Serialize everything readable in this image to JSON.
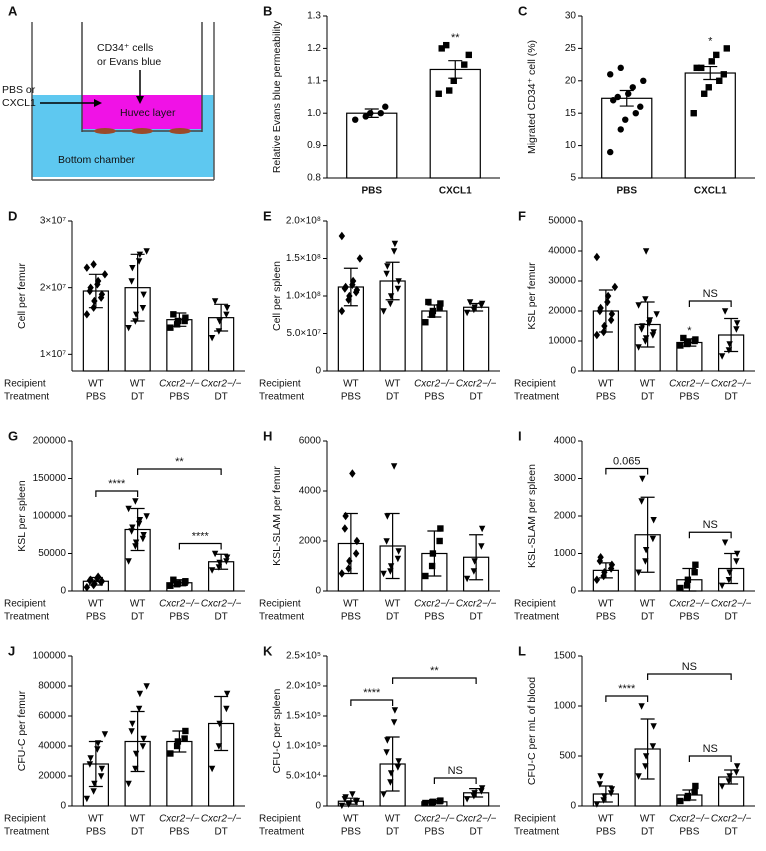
{
  "diagram": {
    "panel": "A",
    "insert_label_1": "CD34⁺ cells",
    "insert_label_2": "or Evans blue",
    "side_label_1": "PBS or",
    "side_label_2": "CXCL1",
    "layer_label": "Huvec layer",
    "chamber_label": "Bottom chamber"
  },
  "chart_data": [
    {
      "type": "bar",
      "panel": "B",
      "ylabel": "Relative Evans blue permeability",
      "categories": [
        "PBS",
        "CXCL1"
      ],
      "values": [
        1.0,
        1.135
      ],
      "errors": [
        0.013,
        0.027
      ],
      "points": [
        [
          0.98,
          0.99,
          1.0,
          1.0,
          1.02
        ],
        [
          1.06,
          1.07,
          1.1,
          1.15,
          1.18,
          1.2,
          1.21
        ]
      ],
      "markers": [
        "circle",
        "square"
      ],
      "ylim": [
        0.8,
        1.3
      ],
      "yticks": [
        0.8,
        0.9,
        {
          "value": 1,
          "label": "1.0"
        },
        1.1,
        1.2,
        1.3
      ],
      "annotations": [
        {
          "groups": [
            1
          ],
          "label": "**",
          "color": "#e0201b"
        }
      ]
    },
    {
      "type": "bar",
      "panel": "C",
      "ylabel": "Migrated CD34⁺ cell (%)",
      "categories": [
        "PBS",
        "CXCL1"
      ],
      "values": [
        17.3,
        21.2
      ],
      "errors": [
        1.2,
        1.0
      ],
      "points": [
        [
          9,
          12.5,
          14,
          15,
          16,
          17,
          17.5,
          18,
          19,
          20,
          21,
          22
        ],
        [
          15,
          18,
          19,
          20,
          21,
          22,
          22,
          23,
          24,
          25
        ]
      ],
      "markers": [
        "circle",
        "square"
      ],
      "ylim": [
        5,
        30
      ],
      "yticks": [
        5,
        10,
        15,
        20,
        25,
        30
      ],
      "annotations": [
        {
          "groups": [
            1
          ],
          "label": "*",
          "color": "#e0201b"
        }
      ]
    },
    {
      "type": "bar",
      "panel": "D",
      "ylabel": "Cell per femur",
      "row_labels": [
        "Recipient",
        "Treatment"
      ],
      "categories": [
        [
          "WT",
          "PBS"
        ],
        [
          "WT",
          "DT"
        ],
        [
          "Cxcr2−/−",
          "PBS"
        ],
        [
          "Cxcr2−/−",
          "DT"
        ]
      ],
      "values": [
        19500000,
        20000000,
        15200000,
        15500000
      ],
      "errors": [
        2500000,
        5000000,
        1000000,
        2000000
      ],
      "points": [
        [
          16000000,
          17000000,
          18000000,
          18500000,
          19000000,
          19500000,
          20000000,
          20500000,
          21000000,
          22000000,
          23000000,
          23500000
        ],
        [
          14000000,
          15000000,
          16000000,
          17000000,
          19000000,
          21000000,
          23000000,
          24000000,
          25000000,
          25500000
        ],
        [
          14000000,
          14500000,
          15000000,
          15000000,
          15500000,
          16000000
        ],
        [
          12500000,
          13500000,
          15000000,
          16000000,
          17000000,
          18000000
        ]
      ],
      "markers": [
        "diamond",
        "triangle-down",
        "square",
        "triangle-down"
      ],
      "ylim": [
        7500000,
        30000000
      ],
      "yticks": [
        {
          "value": 10000000,
          "label": "1×10⁷"
        },
        {
          "value": 20000000,
          "label": "2×10⁷"
        },
        {
          "value": 30000000,
          "label": "3×10⁷"
        }
      ],
      "annotations": []
    },
    {
      "type": "bar",
      "panel": "E",
      "ylabel": "Cell per spleen",
      "row_labels": [
        "Recipient",
        "Treatment"
      ],
      "categories": [
        [
          "WT",
          "PBS"
        ],
        [
          "WT",
          "DT"
        ],
        [
          "Cxcr2−/−",
          "PBS"
        ],
        [
          "Cxcr2−/−",
          "DT"
        ]
      ],
      "values": [
        112000000,
        120000000,
        80000000,
        85000000
      ],
      "errors": [
        25000000,
        25000000,
        8000000,
        5000000
      ],
      "points": [
        [
          80000000,
          95000000,
          100000000,
          105000000,
          108000000,
          110000000,
          112000000,
          115000000,
          120000000,
          150000000,
          180000000
        ],
        [
          80000000,
          90000000,
          100000000,
          110000000,
          120000000,
          130000000,
          140000000,
          160000000,
          170000000
        ],
        [
          65000000,
          75000000,
          80000000,
          85000000,
          90000000,
          92000000
        ],
        [
          78000000,
          82000000,
          85000000,
          88000000,
          90000000,
          92000000
        ]
      ],
      "markers": [
        "diamond",
        "triangle-down",
        "square",
        "triangle-down"
      ],
      "ylim": [
        0,
        200000000
      ],
      "yticks": [
        0,
        {
          "value": 50000000,
          "label": "5.0×10⁷"
        },
        {
          "value": 100000000,
          "label": "1.0×10⁸"
        },
        {
          "value": 150000000,
          "label": "1.5×10⁸"
        },
        {
          "value": 200000000,
          "label": "2.0×10⁸"
        }
      ],
      "annotations": []
    },
    {
      "type": "bar",
      "panel": "F",
      "ylabel": "KSL per femur",
      "row_labels": [
        "Recipient",
        "Treatment"
      ],
      "categories": [
        [
          "WT",
          "PBS"
        ],
        [
          "WT",
          "DT"
        ],
        [
          "Cxcr2−/−",
          "PBS"
        ],
        [
          "Cxcr2−/−",
          "DT"
        ]
      ],
      "values": [
        20000,
        15500,
        9500,
        12000
      ],
      "errors": [
        7000,
        7500,
        1200,
        5500
      ],
      "points": [
        [
          12000,
          13000,
          15000,
          17000,
          19000,
          20000,
          21000,
          23000,
          25000,
          28000,
          38000
        ],
        [
          8000,
          10000,
          11000,
          12000,
          13000,
          14000,
          15000,
          16000,
          17000,
          19000,
          22000,
          24000,
          40000
        ],
        [
          8500,
          9000,
          9500,
          10000,
          10500,
          11000
        ],
        [
          5000,
          7000,
          9000,
          14000,
          16000,
          20000
        ]
      ],
      "markers": [
        "diamond",
        "triangle-down",
        "square",
        "triangle-down"
      ],
      "ylim": [
        0,
        50000
      ],
      "yticks": [
        0,
        10000,
        20000,
        30000,
        40000,
        50000
      ],
      "annotations": [
        {
          "groups": [
            2
          ],
          "label": "*",
          "color": "#e0201b"
        },
        {
          "groups": [
            2,
            3
          ],
          "label": "NS",
          "color": "#333333"
        }
      ]
    },
    {
      "type": "bar",
      "panel": "G",
      "ylabel": "KSL per spleen",
      "row_labels": [
        "Recipient",
        "Treatment"
      ],
      "categories": [
        [
          "WT",
          "PBS"
        ],
        [
          "WT",
          "DT"
        ],
        [
          "Cxcr2−/−",
          "PBS"
        ],
        [
          "Cxcr2−/−",
          "DT"
        ]
      ],
      "values": [
        13000,
        82000,
        11000,
        39000
      ],
      "errors": [
        5000,
        28000,
        4000,
        10000
      ],
      "points": [
        [
          5000,
          8000,
          10000,
          12000,
          13000,
          14000,
          15000,
          17000,
          19000
        ],
        [
          40000,
          60000,
          65000,
          70000,
          75000,
          80000,
          85000,
          90000,
          95000,
          100000,
          110000,
          120000
        ],
        [
          7000,
          9000,
          10000,
          11000,
          13000,
          15000
        ],
        [
          28000,
          32000,
          38000,
          40000,
          45000,
          50000
        ]
      ],
      "markers": [
        "diamond",
        "triangle-down",
        "square",
        "triangle-down"
      ],
      "ylim": [
        0,
        200000
      ],
      "yticks": [
        0,
        50000,
        100000,
        150000,
        200000
      ],
      "annotations": [
        {
          "groups": [
            0,
            1
          ],
          "label": "****",
          "color": "#e0201b"
        },
        {
          "groups": [
            2,
            3
          ],
          "label": "****",
          "color": "#e0201b"
        },
        {
          "groups": [
            1,
            3
          ],
          "label": "**",
          "color": "#e0201b"
        }
      ]
    },
    {
      "type": "bar",
      "panel": "H",
      "ylabel": "KSL-SLAM per femur",
      "row_labels": [
        "Recipient",
        "Treatment"
      ],
      "categories": [
        [
          "WT",
          "PBS"
        ],
        [
          "WT",
          "DT"
        ],
        [
          "Cxcr2−/−",
          "PBS"
        ],
        [
          "Cxcr2−/−",
          "DT"
        ]
      ],
      "values": [
        1900,
        1800,
        1500,
        1350
      ],
      "errors": [
        1200,
        1300,
        900,
        900
      ],
      "points": [
        [
          700,
          900,
          1200,
          1500,
          2000,
          2500,
          3000,
          4700
        ],
        [
          700,
          800,
          1000,
          1300,
          1600,
          2000,
          3000,
          5000
        ],
        [
          600,
          1000,
          1500,
          2000,
          2500
        ],
        [
          500,
          800,
          1200,
          1800,
          2500
        ]
      ],
      "markers": [
        "diamond",
        "triangle-down",
        "square",
        "triangle-down"
      ],
      "ylim": [
        0,
        6000
      ],
      "yticks": [
        0,
        2000,
        4000,
        6000
      ],
      "annotations": []
    },
    {
      "type": "bar",
      "panel": "I",
      "ylabel": "KSL-SLAM per spleen",
      "row_labels": [
        "Recipient",
        "Treatment"
      ],
      "categories": [
        [
          "WT",
          "PBS"
        ],
        [
          "WT",
          "DT"
        ],
        [
          "Cxcr2−/−",
          "PBS"
        ],
        [
          "Cxcr2−/−",
          "DT"
        ]
      ],
      "values": [
        550,
        1500,
        300,
        600
      ],
      "errors": [
        200,
        1000,
        300,
        400
      ],
      "points": [
        [
          300,
          400,
          500,
          600,
          700,
          800,
          900
        ],
        [
          500,
          800,
          1100,
          1400,
          1900,
          2400,
          3000
        ],
        [
          80,
          150,
          300,
          500,
          700
        ],
        [
          150,
          300,
          500,
          800,
          1000,
          1300
        ]
      ],
      "markers": [
        "diamond",
        "triangle-down",
        "square",
        "triangle-down"
      ],
      "ylim": [
        0,
        4000
      ],
      "yticks": [
        0,
        1000,
        2000,
        3000,
        4000
      ],
      "annotations": [
        {
          "groups": [
            0,
            1
          ],
          "label": "0.065",
          "color": "#e0201b"
        },
        {
          "groups": [
            2,
            3
          ],
          "label": "NS",
          "color": "#333333"
        }
      ]
    },
    {
      "type": "bar",
      "panel": "J",
      "ylabel": "CFU-C per femur",
      "row_labels": [
        "Recipient",
        "Treatment"
      ],
      "categories": [
        [
          "WT",
          "PBS"
        ],
        [
          "WT",
          "DT"
        ],
        [
          "Cxcr2−/−",
          "PBS"
        ],
        [
          "Cxcr2−/−",
          "DT"
        ]
      ],
      "values": [
        28000,
        43000,
        43000,
        55000
      ],
      "errors": [
        15000,
        20000,
        7000,
        18000
      ],
      "points": [
        [
          5000,
          10000,
          15000,
          20000,
          25000,
          28000,
          32000,
          38000,
          42000,
          48000
        ],
        [
          15000,
          25000,
          35000,
          40000,
          45000,
          50000,
          55000,
          65000,
          75000,
          80000
        ],
        [
          35000,
          40000,
          43000,
          45000,
          50000
        ],
        [
          25000,
          40000,
          55000,
          65000,
          75000
        ]
      ],
      "markers": [
        "triangle-down",
        "triangle-down",
        "square",
        "triangle-down"
      ],
      "ylim": [
        0,
        100000
      ],
      "yticks": [
        0,
        20000,
        40000,
        60000,
        80000,
        100000
      ],
      "annotations": []
    },
    {
      "type": "bar",
      "panel": "K",
      "ylabel": "CFU-C per spleen",
      "row_labels": [
        "Recipient",
        "Treatment"
      ],
      "categories": [
        [
          "WT",
          "PBS"
        ],
        [
          "WT",
          "DT"
        ],
        [
          "Cxcr2−/−",
          "PBS"
        ],
        [
          "Cxcr2−/−",
          "DT"
        ]
      ],
      "values": [
        8000,
        70000,
        7000,
        22000
      ],
      "errors": [
        5000,
        45000,
        2000,
        7000
      ],
      "points": [
        [
          1000,
          3000,
          5000,
          7000,
          9000,
          12000,
          15000,
          20000
        ],
        [
          20000,
          40000,
          55000,
          65000,
          75000,
          90000,
          110000,
          140000,
          160000
        ],
        [
          5000,
          6000,
          7000,
          8000,
          9000
        ],
        [
          12000,
          17000,
          22000,
          25000,
          30000
        ]
      ],
      "markers": [
        "triangle-down",
        "triangle-down",
        "square",
        "triangle-down"
      ],
      "ylim": [
        0,
        250000
      ],
      "yticks": [
        0,
        {
          "value": 50000,
          "label": "5.0×10⁴"
        },
        {
          "value": 100000,
          "label": "1.0×10⁵"
        },
        {
          "value": 150000,
          "label": "1.5×10⁵"
        },
        {
          "value": 200000,
          "label": "2.0×10⁵"
        },
        {
          "value": 250000,
          "label": "2.5×10⁵"
        }
      ],
      "annotations": [
        {
          "groups": [
            0,
            1
          ],
          "label": "****",
          "color": "#e0201b"
        },
        {
          "groups": [
            2,
            3
          ],
          "label": "NS",
          "color": "#e0201b"
        },
        {
          "groups": [
            1,
            3
          ],
          "label": "**",
          "color": "#e0201b"
        }
      ]
    },
    {
      "type": "bar",
      "panel": "L",
      "ylabel": "CFU-C per mL of blood",
      "row_labels": [
        "Recipient",
        "Treatment"
      ],
      "categories": [
        [
          "WT",
          "PBS"
        ],
        [
          "WT",
          "DT"
        ],
        [
          "Cxcr2−/−",
          "PBS"
        ],
        [
          "Cxcr2−/−",
          "DT"
        ]
      ],
      "values": [
        120,
        570,
        110,
        290
      ],
      "errors": [
        80,
        300,
        50,
        70
      ],
      "points": [
        [
          20,
          60,
          100,
          130,
          170,
          220,
          300
        ],
        [
          300,
          400,
          500,
          600,
          800,
          1000
        ],
        [
          50,
          80,
          100,
          140,
          200
        ],
        [
          200,
          250,
          300,
          340,
          400
        ]
      ],
      "markers": [
        "triangle-down",
        "triangle-down",
        "square",
        "triangle-down"
      ],
      "ylim": [
        0,
        1500
      ],
      "yticks": [
        0,
        500,
        1000,
        1500
      ],
      "annotations": [
        {
          "groups": [
            0,
            1
          ],
          "label": "****",
          "color": "#e0201b"
        },
        {
          "groups": [
            2,
            3
          ],
          "label": "NS",
          "color": "#e0201b"
        },
        {
          "groups": [
            1,
            3
          ],
          "label": "NS",
          "color": "#e0201b"
        }
      ]
    }
  ]
}
